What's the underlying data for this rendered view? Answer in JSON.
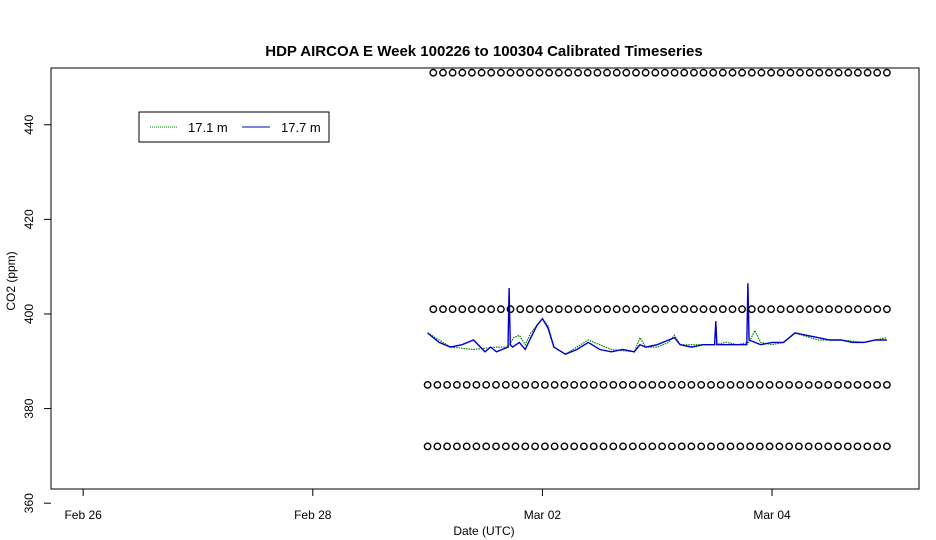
{
  "chart_data": {
    "type": "line",
    "title": "HDP AIRCOA E  Week 100226 to 100304  Calibrated Timeseries",
    "xlabel": "Date (UTC)",
    "ylabel": "CO2 (ppm)",
    "x_ticks": [
      "Feb 26",
      "Feb 28",
      "Mar 02",
      "Mar 04"
    ],
    "x_tick_values": [
      0,
      2,
      4,
      6
    ],
    "y_ticks": [
      "360",
      "380",
      "400",
      "420",
      "440"
    ],
    "y_tick_values": [
      360,
      380,
      400,
      420,
      440
    ],
    "xlim": [
      -0.28,
      7.28
    ],
    "ylim": [
      363,
      452
    ],
    "grid": false,
    "legend_position": "top-left",
    "legend": [
      {
        "label": "17.1 m",
        "color": "#008000",
        "style": "dotted"
      },
      {
        "label": "17.7 m",
        "color": "#0000cc",
        "style": "solid"
      }
    ],
    "series": [
      {
        "name": "17.1 m",
        "color": "#008000",
        "x": [
          3.0,
          3.2,
          3.4,
          3.6,
          3.7,
          3.75,
          3.8,
          3.85,
          3.9,
          4.0,
          4.05,
          4.1,
          4.2,
          4.4,
          4.6,
          4.8,
          4.85,
          4.9,
          5.0,
          5.1,
          5.15,
          5.2,
          5.3,
          5.5,
          5.6,
          5.7,
          5.8,
          5.85,
          5.9,
          6.0,
          6.1,
          6.2,
          6.4,
          6.6,
          6.8,
          7.0
        ],
        "y": [
          396.0,
          393.0,
          392.5,
          393.0,
          393.0,
          395.0,
          395.5,
          393.5,
          396.0,
          399.0,
          397.5,
          393.0,
          391.5,
          394.5,
          392.5,
          392.0,
          395.0,
          393.0,
          393.0,
          394.0,
          395.5,
          393.5,
          393.5,
          393.5,
          394.0,
          393.5,
          394.0,
          396.5,
          394.0,
          393.5,
          394.0,
          396.0,
          394.5,
          394.5,
          394.0,
          395.0
        ]
      },
      {
        "name": "17.7 m",
        "color": "#0000cc",
        "x": [
          3.0,
          3.1,
          3.2,
          3.3,
          3.4,
          3.5,
          3.55,
          3.6,
          3.65,
          3.7,
          3.71,
          3.72,
          3.74,
          3.8,
          3.85,
          3.9,
          3.95,
          4.0,
          4.05,
          4.1,
          4.2,
          4.3,
          4.4,
          4.5,
          4.6,
          4.7,
          4.8,
          4.85,
          4.9,
          5.0,
          5.1,
          5.15,
          5.2,
          5.3,
          5.4,
          5.5,
          5.51,
          5.52,
          5.6,
          5.7,
          5.78,
          5.79,
          5.8,
          5.9,
          6.0,
          6.1,
          6.2,
          6.3,
          6.4,
          6.5,
          6.6,
          6.7,
          6.8,
          6.9,
          7.0
        ],
        "y": [
          396.0,
          394.0,
          393.0,
          393.5,
          394.5,
          392.0,
          393.0,
          392.0,
          392.5,
          393.0,
          405.5,
          393.5,
          393.0,
          394.0,
          392.5,
          395.0,
          397.5,
          399.0,
          397.0,
          393.0,
          391.5,
          392.5,
          394.0,
          392.5,
          392.0,
          392.5,
          392.0,
          393.5,
          393.0,
          393.5,
          394.5,
          395.0,
          393.5,
          393.0,
          393.5,
          393.5,
          398.5,
          393.5,
          393.5,
          393.5,
          393.5,
          406.5,
          394.5,
          393.5,
          394.0,
          394.0,
          396.0,
          395.5,
          395.0,
          394.5,
          394.5,
          394.0,
          394.0,
          394.5,
          394.5
        ]
      }
    ],
    "reference_markers": [
      {
        "name": "cal-level-451",
        "symbol": "o",
        "x_start": 3.05,
        "x_end": 7.0,
        "y": 451
      },
      {
        "name": "cal-level-401",
        "symbol": "o",
        "x_start": 3.05,
        "x_end": 7.0,
        "y": 401
      },
      {
        "name": "cal-level-385",
        "symbol": "o",
        "x_start": 3.0,
        "x_end": 7.0,
        "y": 385
      },
      {
        "name": "cal-level-372",
        "symbol": "o",
        "x_start": 3.0,
        "x_end": 7.0,
        "y": 372
      }
    ]
  }
}
